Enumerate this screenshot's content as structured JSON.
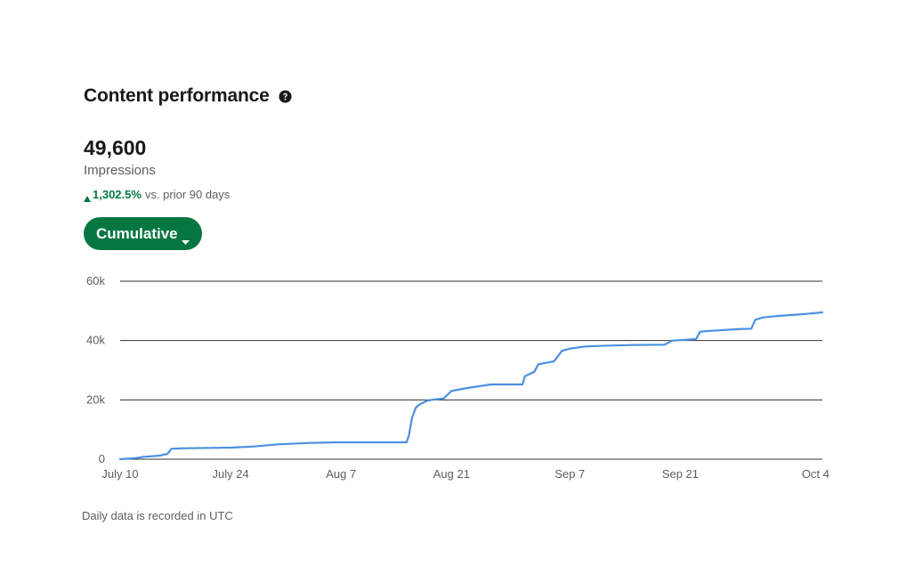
{
  "header": {
    "title": "Content performance",
    "help_icon": "question-circle-icon"
  },
  "metric": {
    "value": "49,600",
    "label": "Impressions",
    "change_percent": "1,302.5%",
    "change_suffix": "vs. prior 90 days",
    "change_direction": "up"
  },
  "toggle": {
    "label": "Cumulative",
    "icon": "caret-down-icon"
  },
  "colors": {
    "accent": "#057642",
    "line": "#4a90e2",
    "gridline": "#333333"
  },
  "chart_data": {
    "type": "line",
    "series": [
      {
        "values": [
          [
            0,
            0
          ],
          [
            2,
            400
          ],
          [
            3,
            800
          ],
          [
            5,
            1200
          ],
          [
            6,
            1800
          ],
          [
            6.5,
            3500
          ],
          [
            8,
            3700
          ],
          [
            14,
            3900
          ],
          [
            17,
            4300
          ],
          [
            20,
            5000
          ],
          [
            24,
            5500
          ],
          [
            28,
            5700
          ],
          [
            32,
            5700
          ],
          [
            36.3,
            5700
          ],
          [
            36.6,
            8000
          ],
          [
            37,
            14000
          ],
          [
            37.5,
            17500
          ],
          [
            38,
            18500
          ],
          [
            39,
            19800
          ],
          [
            40,
            20200
          ],
          [
            41,
            20500
          ],
          [
            42,
            23000
          ],
          [
            44,
            24000
          ],
          [
            46,
            24800
          ],
          [
            47,
            25200
          ],
          [
            51,
            25200
          ],
          [
            51.3,
            28000
          ],
          [
            52.5,
            29500
          ],
          [
            53,
            32000
          ],
          [
            54,
            32500
          ],
          [
            55,
            33000
          ],
          [
            56,
            36500
          ],
          [
            57,
            37300
          ],
          [
            59,
            38000
          ],
          [
            62,
            38300
          ],
          [
            65,
            38500
          ],
          [
            69,
            38600
          ],
          [
            70,
            40000
          ],
          [
            73,
            40500
          ],
          [
            73.5,
            43000
          ],
          [
            75,
            43300
          ],
          [
            78,
            43800
          ],
          [
            80,
            44000
          ],
          [
            80.5,
            47000
          ],
          [
            81.5,
            47800
          ],
          [
            83,
            48200
          ],
          [
            85,
            48600
          ],
          [
            87,
            49000
          ],
          [
            89,
            49500
          ]
        ]
      }
    ],
    "x_tick_labels": [
      "July 10",
      "July 24",
      "Aug 7",
      "Aug 21",
      "Sep 7",
      "Sep 21",
      "Oct 4"
    ],
    "x_tick_days": [
      0,
      14,
      28,
      42,
      57,
      71,
      85
    ],
    "x_domain_days": [
      0,
      89
    ],
    "y_tick_labels": [
      "0",
      "20k",
      "40k",
      "60k"
    ],
    "y_tick_values": [
      0,
      20000,
      40000,
      60000
    ],
    "ylim": [
      0,
      60000
    ],
    "grid": true,
    "legend": "none"
  },
  "footnote": "Daily data is recorded in UTC"
}
